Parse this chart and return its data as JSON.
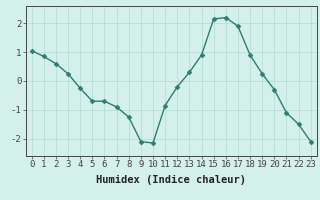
{
  "x": [
    0,
    1,
    2,
    3,
    4,
    5,
    6,
    7,
    8,
    9,
    10,
    11,
    12,
    13,
    14,
    15,
    16,
    17,
    18,
    19,
    20,
    21,
    22,
    23
  ],
  "y": [
    1.05,
    0.85,
    0.6,
    0.25,
    -0.25,
    -0.7,
    -0.7,
    -0.9,
    -1.25,
    -2.1,
    -2.15,
    -0.85,
    -0.2,
    0.3,
    0.9,
    2.15,
    2.2,
    1.9,
    0.9,
    0.25,
    -0.3,
    -1.1,
    -1.5,
    -2.1
  ],
  "line_color": "#2e7d6e",
  "marker": "D",
  "markersize": 2.5,
  "linewidth": 1.0,
  "xlabel": "Humidex (Indice chaleur)",
  "xlabel_fontsize": 7.5,
  "bg_color": "#d4f0eb",
  "grid_color": "#b8ddd7",
  "axis_color": "#444444",
  "tick_fontsize": 6.5,
  "xlim": [
    -0.5,
    23.5
  ],
  "ylim": [
    -2.6,
    2.6
  ],
  "yticks": [
    -2,
    -1,
    0,
    1,
    2
  ],
  "xticks": [
    0,
    1,
    2,
    3,
    4,
    5,
    6,
    7,
    8,
    9,
    10,
    11,
    12,
    13,
    14,
    15,
    16,
    17,
    18,
    19,
    20,
    21,
    22,
    23
  ]
}
